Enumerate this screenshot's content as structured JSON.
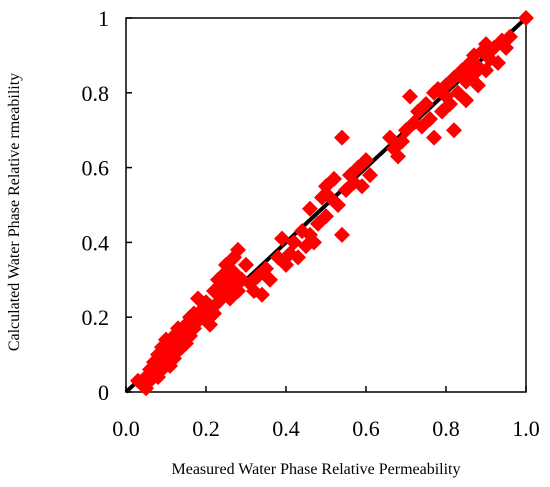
{
  "chart_data": {
    "type": "scatter",
    "title": "",
    "xlabel": "Measured Water Phase Relative Permeability",
    "ylabel": "Calculated Water Phase Relative rmeability",
    "xlim": [
      0,
      1
    ],
    "ylim": [
      0,
      1
    ],
    "x_ticks": [
      "0.0",
      "0.2",
      "0.4",
      "0.6",
      "0.8",
      "1.0"
    ],
    "y_ticks": [
      "0",
      "0.2",
      "0.4",
      "0.6",
      "0.8",
      "1"
    ],
    "grid": false,
    "legend": "none",
    "reference_line": {
      "x": [
        0,
        1
      ],
      "y": [
        0,
        1
      ],
      "color": "#000000"
    },
    "series": [
      {
        "marker": "diamond",
        "color": "#ff0000",
        "points": [
          [
            0.03,
            0.03
          ],
          [
            0.04,
            0.02
          ],
          [
            0.05,
            0.01
          ],
          [
            0.05,
            0.04
          ],
          [
            0.06,
            0.03
          ],
          [
            0.06,
            0.06
          ],
          [
            0.07,
            0.05
          ],
          [
            0.07,
            0.08
          ],
          [
            0.08,
            0.04
          ],
          [
            0.08,
            0.07
          ],
          [
            0.08,
            0.1
          ],
          [
            0.09,
            0.06
          ],
          [
            0.09,
            0.09
          ],
          [
            0.09,
            0.12
          ],
          [
            0.1,
            0.08
          ],
          [
            0.1,
            0.11
          ],
          [
            0.1,
            0.14
          ],
          [
            0.11,
            0.07
          ],
          [
            0.11,
            0.1
          ],
          [
            0.11,
            0.13
          ],
          [
            0.12,
            0.09
          ],
          [
            0.12,
            0.12
          ],
          [
            0.12,
            0.15
          ],
          [
            0.13,
            0.11
          ],
          [
            0.13,
            0.14
          ],
          [
            0.13,
            0.17
          ],
          [
            0.14,
            0.12
          ],
          [
            0.14,
            0.16
          ],
          [
            0.15,
            0.13
          ],
          [
            0.15,
            0.18
          ],
          [
            0.16,
            0.15
          ],
          [
            0.16,
            0.2
          ],
          [
            0.17,
            0.17
          ],
          [
            0.17,
            0.21
          ],
          [
            0.18,
            0.25
          ],
          [
            0.18,
            0.19
          ],
          [
            0.19,
            0.22
          ],
          [
            0.2,
            0.2
          ],
          [
            0.2,
            0.24
          ],
          [
            0.21,
            0.18
          ],
          [
            0.21,
            0.23
          ],
          [
            0.22,
            0.21
          ],
          [
            0.22,
            0.27
          ],
          [
            0.23,
            0.3
          ],
          [
            0.23,
            0.24
          ],
          [
            0.24,
            0.26
          ],
          [
            0.24,
            0.31
          ],
          [
            0.25,
            0.28
          ],
          [
            0.25,
            0.34
          ],
          [
            0.26,
            0.25
          ],
          [
            0.26,
            0.29
          ],
          [
            0.27,
            0.36
          ],
          [
            0.27,
            0.32
          ],
          [
            0.28,
            0.27
          ],
          [
            0.28,
            0.38
          ],
          [
            0.29,
            0.3
          ],
          [
            0.3,
            0.34
          ],
          [
            0.31,
            0.29
          ],
          [
            0.32,
            0.27
          ],
          [
            0.33,
            0.31
          ],
          [
            0.34,
            0.26
          ],
          [
            0.35,
            0.33
          ],
          [
            0.36,
            0.3
          ],
          [
            0.38,
            0.36
          ],
          [
            0.39,
            0.41
          ],
          [
            0.4,
            0.34
          ],
          [
            0.41,
            0.37
          ],
          [
            0.42,
            0.4
          ],
          [
            0.43,
            0.36
          ],
          [
            0.44,
            0.43
          ],
          [
            0.45,
            0.39
          ],
          [
            0.46,
            0.49
          ],
          [
            0.46,
            0.42
          ],
          [
            0.47,
            0.4
          ],
          [
            0.48,
            0.45
          ],
          [
            0.49,
            0.52
          ],
          [
            0.5,
            0.47
          ],
          [
            0.5,
            0.55
          ],
          [
            0.51,
            0.52
          ],
          [
            0.52,
            0.57
          ],
          [
            0.53,
            0.5
          ],
          [
            0.54,
            0.68
          ],
          [
            0.54,
            0.42
          ],
          [
            0.55,
            0.54
          ],
          [
            0.56,
            0.58
          ],
          [
            0.57,
            0.56
          ],
          [
            0.58,
            0.6
          ],
          [
            0.59,
            0.55
          ],
          [
            0.6,
            0.62
          ],
          [
            0.61,
            0.58
          ],
          [
            0.66,
            0.68
          ],
          [
            0.67,
            0.65
          ],
          [
            0.68,
            0.63
          ],
          [
            0.69,
            0.67
          ],
          [
            0.7,
            0.7
          ],
          [
            0.71,
            0.79
          ],
          [
            0.72,
            0.72
          ],
          [
            0.73,
            0.75
          ],
          [
            0.74,
            0.71
          ],
          [
            0.75,
            0.77
          ],
          [
            0.76,
            0.73
          ],
          [
            0.77,
            0.68
          ],
          [
            0.77,
            0.8
          ],
          [
            0.78,
            0.81
          ],
          [
            0.79,
            0.75
          ],
          [
            0.8,
            0.79
          ],
          [
            0.8,
            0.82
          ],
          [
            0.81,
            0.77
          ],
          [
            0.82,
            0.84
          ],
          [
            0.82,
            0.7
          ],
          [
            0.83,
            0.8
          ],
          [
            0.84,
            0.86
          ],
          [
            0.85,
            0.83
          ],
          [
            0.85,
            0.78
          ],
          [
            0.86,
            0.88
          ],
          [
            0.87,
            0.85
          ],
          [
            0.87,
            0.9
          ],
          [
            0.88,
            0.82
          ],
          [
            0.88,
            0.87
          ],
          [
            0.89,
            0.91
          ],
          [
            0.9,
            0.86
          ],
          [
            0.9,
            0.93
          ],
          [
            0.91,
            0.89
          ],
          [
            0.92,
            0.92
          ],
          [
            0.93,
            0.88
          ],
          [
            0.94,
            0.94
          ],
          [
            0.95,
            0.92
          ],
          [
            0.96,
            0.95
          ],
          [
            1.0,
            1.0
          ]
        ]
      }
    ]
  }
}
